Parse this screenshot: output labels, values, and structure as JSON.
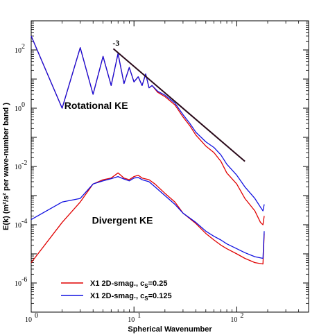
{
  "chart_data": {
    "type": "line",
    "title": "",
    "xlabel": "Spherical Wavenumber",
    "ylabel": "E(k) (m²/s² per wave-number band )",
    "xscale": "log",
    "yscale": "log",
    "xlim": [
      1,
      500
    ],
    "ylim": [
      1e-07,
      1000
    ],
    "grid": false,
    "legend_position": "bottom-left",
    "x_ticks": [
      {
        "value": 1,
        "label": "10",
        "exp": "0"
      },
      {
        "value": 10,
        "label": "10",
        "exp": "1"
      },
      {
        "value": 100,
        "label": "10",
        "exp": "2"
      }
    ],
    "y_ticks": [
      {
        "value": 100,
        "label": "10",
        "exp": "2"
      },
      {
        "value": 1,
        "label": "10",
        "exp": "0"
      },
      {
        "value": 0.01,
        "label": "10",
        "exp": "-2"
      },
      {
        "value": 0.0001,
        "label": "10",
        "exp": "-4"
      },
      {
        "value": 1e-06,
        "label": "10",
        "exp": "-6"
      }
    ],
    "annotations": [
      {
        "text": "Rotational KE",
        "x": 2.1,
        "y": 0.95
      },
      {
        "text": "Divergent KE",
        "x": 3.9,
        "y": 0.00011
      },
      {
        "text": "-3",
        "x": 6.2,
        "y": 140
      }
    ],
    "reference_line": {
      "name": "k^-3",
      "x": [
        6.3,
        120
      ],
      "y": [
        110,
        0.015
      ],
      "color": "#2a0a1a"
    },
    "legend": [
      {
        "text": "X1 2D-smag., c",
        "sub": "S",
        "suffix": "=0.25",
        "color": "#e00000"
      },
      {
        "text": "X1 2D-smag., c",
        "sub": "S",
        "suffix": "=0.125",
        "color": "#1010e0"
      }
    ],
    "series": [
      {
        "name": "X1 2D-smag., cS=0.25 (rotational)",
        "color": "#e00000",
        "x": [
          1,
          2,
          3,
          4,
          5,
          6,
          7,
          8,
          9,
          10,
          11,
          12,
          13,
          14,
          15,
          17,
          20,
          25,
          30,
          35,
          40,
          50,
          60,
          70,
          80,
          100,
          120,
          150,
          170,
          180,
          185
        ],
        "y": [
          300,
          1,
          120,
          3,
          60,
          6,
          75,
          7,
          25,
          8,
          12,
          6,
          15,
          5,
          6,
          3.5,
          2.5,
          1.3,
          0.5,
          0.25,
          0.12,
          0.05,
          0.03,
          0.015,
          0.006,
          0.0025,
          0.0008,
          0.0003,
          0.00012,
          0.0001,
          0.0002
        ]
      },
      {
        "name": "X1 2D-smag., cS=0.125 (rotational)",
        "color": "#1010e0",
        "x": [
          1,
          2,
          3,
          4,
          5,
          6,
          7,
          8,
          9,
          10,
          11,
          12,
          13,
          14,
          15,
          17,
          20,
          25,
          30,
          35,
          40,
          50,
          60,
          70,
          80,
          100,
          120,
          150,
          170,
          180,
          185
        ],
        "y": [
          300,
          1,
          120,
          3,
          60,
          6,
          75,
          7,
          25,
          8,
          12,
          6,
          15,
          5,
          6,
          3.8,
          2.8,
          1.5,
          0.6,
          0.3,
          0.15,
          0.07,
          0.045,
          0.025,
          0.012,
          0.005,
          0.002,
          0.0008,
          0.0004,
          0.0003,
          0.0005
        ]
      },
      {
        "name": "X1 2D-smag., cS=0.25 (divergent)",
        "color": "#e00000",
        "x": [
          1,
          2,
          3,
          4,
          5,
          6,
          7,
          8,
          9,
          10,
          11,
          12,
          14,
          16,
          20,
          25,
          30,
          40,
          50,
          60,
          70,
          80,
          100,
          120,
          150,
          180,
          185
        ],
        "y": [
          5e-06,
          0.00012,
          0.0006,
          0.0025,
          0.0035,
          0.004,
          0.006,
          0.004,
          0.0035,
          0.0045,
          0.005,
          0.004,
          0.0035,
          0.0025,
          0.0012,
          0.0006,
          0.00025,
          0.00011,
          5e-05,
          3e-05,
          2e-05,
          1.5e-05,
          1e-05,
          7e-06,
          5e-06,
          4.5e-06,
          5e-05
        ]
      },
      {
        "name": "X1 2D-smag., cS=0.125 (divergent)",
        "color": "#1010e0",
        "x": [
          1,
          2,
          3,
          4,
          5,
          6,
          7,
          8,
          9,
          10,
          11,
          12,
          14,
          16,
          20,
          25,
          30,
          40,
          50,
          60,
          70,
          80,
          100,
          120,
          150,
          180,
          185
        ],
        "y": [
          0.00015,
          0.0006,
          0.0008,
          0.0025,
          0.0032,
          0.0038,
          0.0045,
          0.0037,
          0.0032,
          0.004,
          0.0042,
          0.0035,
          0.003,
          0.002,
          0.001,
          0.0005,
          0.00025,
          0.00012,
          6e-05,
          4e-05,
          3e-05,
          2.2e-05,
          1.5e-05,
          1.1e-05,
          8e-06,
          7e-06,
          6e-05
        ]
      }
    ]
  }
}
